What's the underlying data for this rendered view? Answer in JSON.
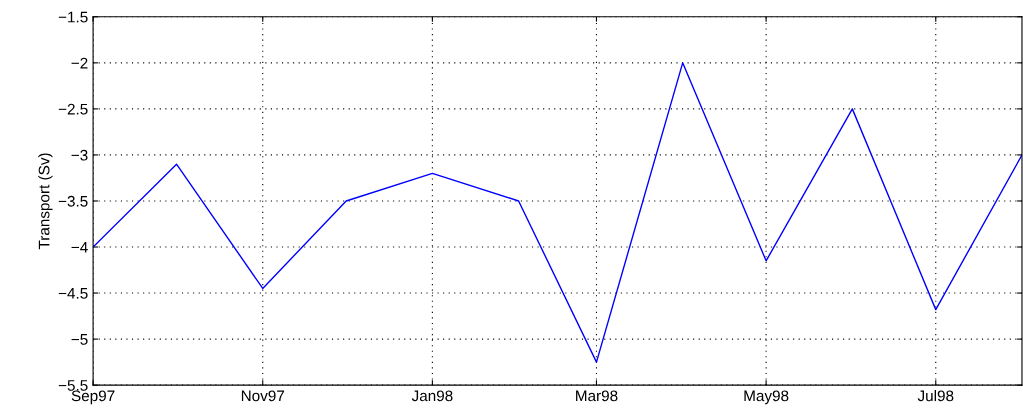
{
  "chart_data": {
    "type": "line",
    "ylabel": "Transport (Sv)",
    "x": [
      "1997-09",
      "1997-10",
      "1997-11",
      "1997-12",
      "1998-01",
      "1998-02",
      "1998-03",
      "1998-04",
      "1998-05",
      "1998-06",
      "1998-07",
      "1998-08"
    ],
    "series": [
      {
        "color": "#0000ff",
        "values": [
          -4.0,
          -3.1,
          -4.45,
          -3.5,
          -3.2,
          -3.5,
          -5.25,
          -2.0,
          -4.15,
          -2.5,
          -4.68,
          -3.0
        ]
      }
    ],
    "xlim": [
      "1997-09",
      "1998-08"
    ],
    "xticks": [
      {
        "value": "1997-09",
        "label": "Sep97"
      },
      {
        "value": "1997-11",
        "label": "Nov97"
      },
      {
        "value": "1998-01",
        "label": "Jan98"
      },
      {
        "value": "1998-03",
        "label": "Mar98"
      },
      {
        "value": "1998-05",
        "label": "May98"
      },
      {
        "value": "1998-07",
        "label": "Jul98"
      }
    ],
    "ylim": [
      -5.5,
      -1.5
    ],
    "yticks": [
      -5.5,
      -5,
      -4.5,
      -4,
      -3.5,
      -3,
      -2.5,
      -2,
      -1.5
    ],
    "grid": true,
    "line_style": "solid",
    "marker": "none"
  }
}
